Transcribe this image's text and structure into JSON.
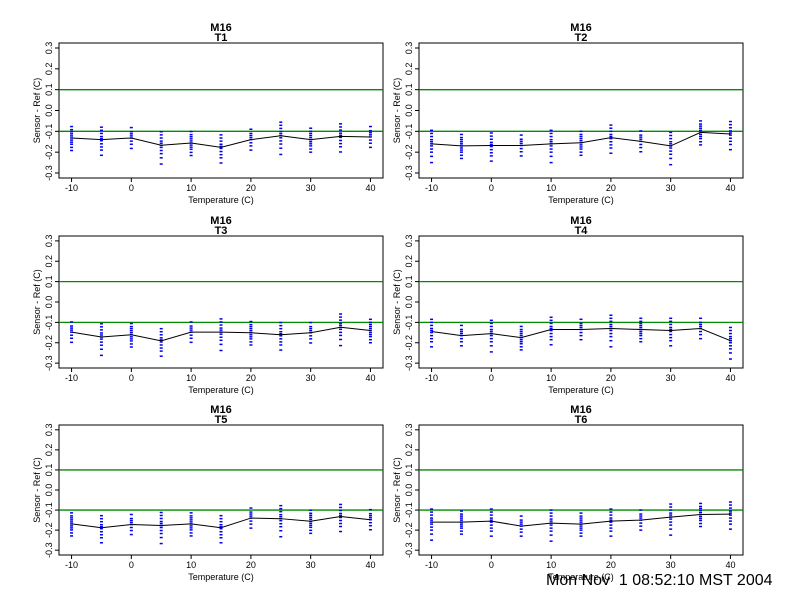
{
  "page": {
    "background": "#ffffff",
    "timestamp": "Mon Nov  1 08:52:10 MST 2004"
  },
  "chart_data": {
    "type": "scatter",
    "title": "M16",
    "xlabel": "Temperature (C)",
    "ylabel": "Sensor - Ref (C)",
    "xlim": [
      -12.1,
      42.1
    ],
    "ylim": [
      -0.324,
      0.324
    ],
    "xticks": [
      -10,
      0,
      10,
      20,
      30,
      40
    ],
    "yticks": [
      -0.3,
      -0.2,
      -0.1,
      0,
      0.1,
      0.2,
      0.3
    ],
    "ytick_labels": [
      "-0.3",
      "-0.2",
      "-0.1",
      "0.0",
      "0.1",
      "0.2",
      "0.3"
    ],
    "grid": false,
    "legend": null,
    "limit_lines": {
      "values": [
        0.1,
        -0.1
      ],
      "color": "#008b00"
    },
    "point_color": "#0000ee",
    "mean_line_color": "#000000",
    "axis_color": "#000000",
    "cluster_x": [
      -10,
      -5,
      0,
      5,
      10,
      15,
      20,
      25,
      30,
      35,
      40
    ],
    "panels": [
      {
        "subtitle": "T1",
        "mean": [
          -0.132,
          -0.14,
          -0.132,
          -0.167,
          -0.156,
          -0.177,
          -0.14,
          -0.121,
          -0.14,
          -0.124,
          -0.127
        ]
      },
      {
        "subtitle": "T2",
        "mean": [
          -0.16,
          -0.17,
          -0.168,
          -0.168,
          -0.16,
          -0.155,
          -0.13,
          -0.148,
          -0.17,
          -0.105,
          -0.113
        ]
      },
      {
        "subtitle": "T3",
        "mean": [
          -0.148,
          -0.172,
          -0.161,
          -0.191,
          -0.148,
          -0.148,
          -0.151,
          -0.161,
          -0.151,
          -0.124,
          -0.14
        ]
      },
      {
        "subtitle": "T4",
        "mean": [
          -0.145,
          -0.165,
          -0.155,
          -0.175,
          -0.135,
          -0.135,
          -0.13,
          -0.135,
          -0.14,
          -0.13,
          -0.19
        ]
      },
      {
        "subtitle": "T5",
        "mean": [
          -0.169,
          -0.188,
          -0.172,
          -0.177,
          -0.169,
          -0.188,
          -0.14,
          -0.143,
          -0.156,
          -0.132,
          -0.148
        ]
      },
      {
        "subtitle": "T6",
        "mean": [
          -0.16,
          -0.16,
          -0.155,
          -0.18,
          -0.165,
          -0.17,
          -0.155,
          -0.15,
          -0.135,
          -0.122,
          -0.12
        ]
      }
    ],
    "scatter_dash_offsets": [
      [
        0.055,
        0.04,
        0.03,
        0.02,
        0.01,
        0,
        -0.01,
        -0.02,
        -0.03,
        -0.045,
        -0.06
      ],
      [
        0.06,
        0.045,
        0.03,
        0.015,
        0.005,
        -0.005,
        -0.02,
        -0.035,
        -0.05,
        -0.075
      ],
      [
        0.05,
        0.03,
        0.02,
        0.01,
        0,
        -0.015,
        -0.03,
        -0.05
      ],
      [
        0.065,
        0.05,
        0.035,
        0.02,
        0.01,
        0,
        -0.01,
        -0.025,
        -0.04,
        -0.06,
        -0.09
      ]
    ]
  }
}
